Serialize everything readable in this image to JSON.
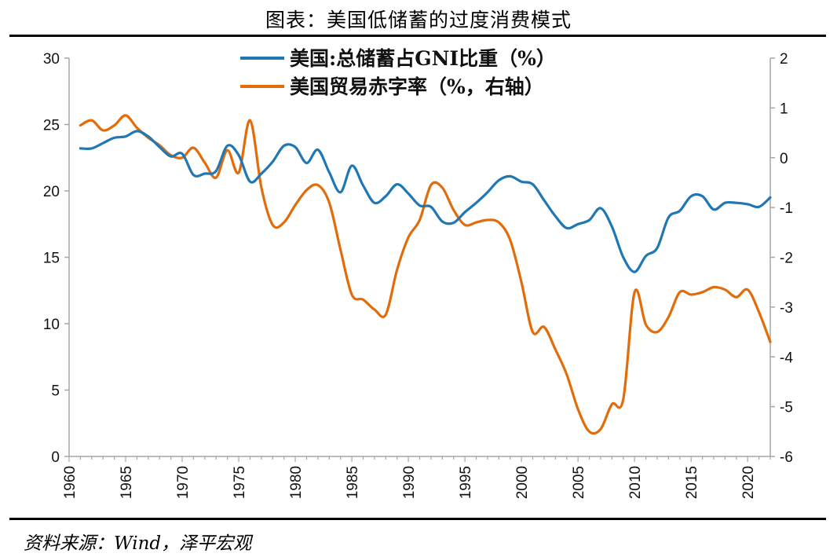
{
  "header": {
    "title": "图表：美国低储蓄的过度消费模式"
  },
  "footer": {
    "source": "资料来源：Wind，泽平宏观"
  },
  "colors": {
    "saving": "#1f77b4",
    "trade": "#e36c0a",
    "axis": "#a6a6a6"
  },
  "chart_data": {
    "type": "line",
    "title": "图表：美国低储蓄的过度消费模式",
    "xlim": [
      1960,
      2022
    ],
    "x_ticks": [
      1960,
      1965,
      1970,
      1975,
      1980,
      1985,
      1990,
      1995,
      2000,
      2005,
      2010,
      2015,
      2020
    ],
    "y_left": {
      "lim": [
        0,
        30
      ],
      "ticks": [
        0,
        5,
        10,
        15,
        20,
        25,
        30
      ]
    },
    "y_right": {
      "lim": [
        -6,
        2
      ],
      "ticks": [
        -6,
        -5,
        -4,
        -3,
        -2,
        -1,
        0,
        1,
        2
      ]
    },
    "legend_position": "top-center",
    "series": [
      {
        "name": "美国:总储蓄占GNI比重（%）",
        "axis": "left",
        "color": "#1f77b4",
        "x": [
          1961,
          1962,
          1963,
          1964,
          1965,
          1966,
          1967,
          1968,
          1969,
          1970,
          1971,
          1972,
          1973,
          1974,
          1975,
          1976,
          1977,
          1978,
          1979,
          1980,
          1981,
          1982,
          1983,
          1984,
          1985,
          1986,
          1987,
          1988,
          1989,
          1990,
          1991,
          1992,
          1993,
          1994,
          1995,
          1996,
          1997,
          1998,
          1999,
          2000,
          2001,
          2002,
          2003,
          2004,
          2005,
          2006,
          2007,
          2008,
          2009,
          2010,
          2011,
          2012,
          2013,
          2014,
          2015,
          2016,
          2017,
          2018,
          2019,
          2020,
          2021,
          2022
        ],
        "values": [
          23.2,
          23.2,
          23.6,
          24.0,
          24.1,
          24.5,
          24.1,
          23.3,
          22.6,
          22.8,
          21.2,
          21.3,
          21.5,
          23.4,
          22.7,
          20.7,
          21.3,
          22.2,
          23.4,
          23.3,
          22.1,
          23.1,
          21.4,
          19.9,
          21.9,
          20.4,
          19.1,
          19.6,
          20.5,
          19.8,
          18.9,
          18.8,
          17.7,
          17.6,
          18.4,
          19.1,
          19.9,
          20.8,
          21.1,
          20.7,
          20.5,
          19.3,
          18.1,
          17.2,
          17.5,
          17.8,
          18.7,
          17.3,
          15.0,
          13.9,
          15.1,
          15.7,
          18.0,
          18.5,
          19.6,
          19.6,
          18.6,
          19.1,
          19.1,
          19.0,
          18.8,
          19.5
        ]
      },
      {
        "name": "美国贸易赤字率（%，右轴）",
        "axis": "right",
        "color": "#e36c0a",
        "x": [
          1961,
          1962,
          1963,
          1964,
          1965,
          1966,
          1967,
          1968,
          1969,
          1970,
          1971,
          1972,
          1973,
          1974,
          1975,
          1976,
          1977,
          1978,
          1979,
          1980,
          1981,
          1982,
          1983,
          1984,
          1985,
          1986,
          1987,
          1988,
          1989,
          1990,
          1991,
          1992,
          1993,
          1994,
          1995,
          1996,
          1997,
          1998,
          1999,
          2000,
          2001,
          2002,
          2003,
          2004,
          2005,
          2006,
          2007,
          2008,
          2009,
          2010,
          2011,
          2012,
          2013,
          2014,
          2015,
          2016,
          2017,
          2018,
          2019,
          2020,
          2021,
          2022
        ],
        "values": [
          0.65,
          0.75,
          0.55,
          0.65,
          0.85,
          0.6,
          0.4,
          0.25,
          0.05,
          0.0,
          0.2,
          -0.1,
          -0.4,
          0.15,
          -0.3,
          0.75,
          -0.6,
          -1.35,
          -1.3,
          -0.95,
          -0.65,
          -0.55,
          -0.9,
          -1.85,
          -2.75,
          -2.85,
          -3.05,
          -3.15,
          -2.25,
          -1.6,
          -1.25,
          -0.55,
          -0.6,
          -1.05,
          -1.35,
          -1.3,
          -1.25,
          -1.3,
          -1.65,
          -2.5,
          -3.5,
          -3.4,
          -3.85,
          -4.35,
          -5.05,
          -5.5,
          -5.45,
          -4.95,
          -4.85,
          -2.7,
          -3.35,
          -3.5,
          -3.2,
          -2.7,
          -2.75,
          -2.7,
          -2.6,
          -2.65,
          -2.8,
          -2.65,
          -3.1,
          -3.7
        ]
      }
    ]
  }
}
